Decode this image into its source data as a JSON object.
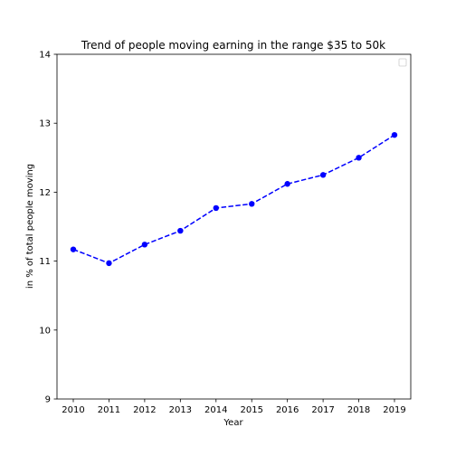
{
  "chart_data": {
    "type": "line",
    "title": "Trend of people moving earning in the range $35 to 50k",
    "xlabel": "Year",
    "ylabel": "in % of total people moving",
    "x": [
      2010,
      2011,
      2012,
      2013,
      2014,
      2015,
      2016,
      2017,
      2018,
      2019
    ],
    "x_tick_labels": [
      "2010",
      "2011",
      "2012",
      "2013",
      "2014",
      "2015",
      "2016",
      "2017",
      "2018",
      "2019"
    ],
    "series": [
      {
        "values": [
          11.17,
          10.97,
          11.24,
          11.44,
          11.77,
          11.83,
          12.12,
          12.25,
          12.5,
          12.83
        ],
        "color": "#0000ff",
        "line_style": "dashed",
        "marker": "circle"
      }
    ],
    "ylim": [
      9,
      14
    ],
    "y_ticks": [
      9,
      10,
      11,
      12,
      13,
      14
    ],
    "y_tick_labels": [
      "9",
      "10",
      "11",
      "12",
      "13",
      "14"
    ],
    "grid": false,
    "legend": {
      "placement": "top-right",
      "entries": []
    }
  }
}
